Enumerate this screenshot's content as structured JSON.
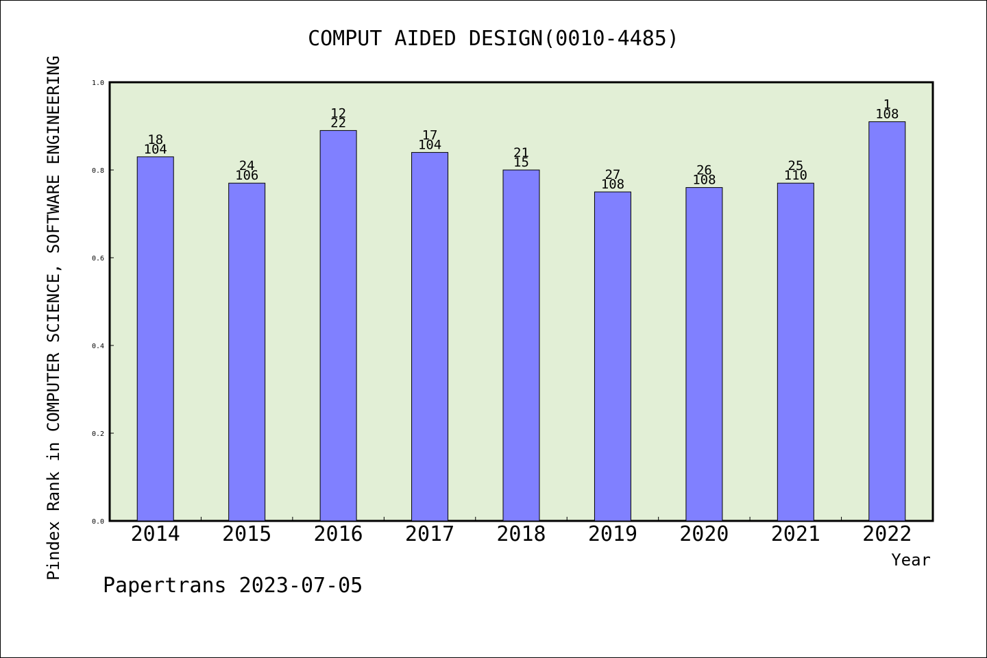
{
  "chart_data": {
    "type": "bar",
    "title": "COMPUT AIDED DESIGN(0010-4485)",
    "xlabel": "Year",
    "ylabel": "Pindex Rank in COMPUTER SCIENCE, SOFTWARE ENGINEERING",
    "categories": [
      "2014",
      "2015",
      "2016",
      "2017",
      "2018",
      "2019",
      "2020",
      "2021",
      "2022"
    ],
    "values": [
      0.83,
      0.77,
      0.89,
      0.84,
      0.8,
      0.75,
      0.76,
      0.77,
      0.91
    ],
    "labels_top": [
      "18",
      "24",
      "12",
      "17",
      "21",
      "27",
      "26",
      "25",
      "1"
    ],
    "labels_bottom": [
      "104",
      "106",
      "22",
      "104",
      "15",
      "108",
      "108",
      "110",
      "108"
    ],
    "ylim": [
      0,
      1.0
    ],
    "yticks": [
      "0.0",
      "0.2",
      "0.4",
      "0.6",
      "0.8",
      "1.0"
    ],
    "grid": false,
    "colors": {
      "plot_bg": "#e2efd6",
      "bar": "#8080ff",
      "bar_edge": "#000000"
    }
  },
  "footer": {
    "text": "Papertrans 2023-07-05"
  }
}
